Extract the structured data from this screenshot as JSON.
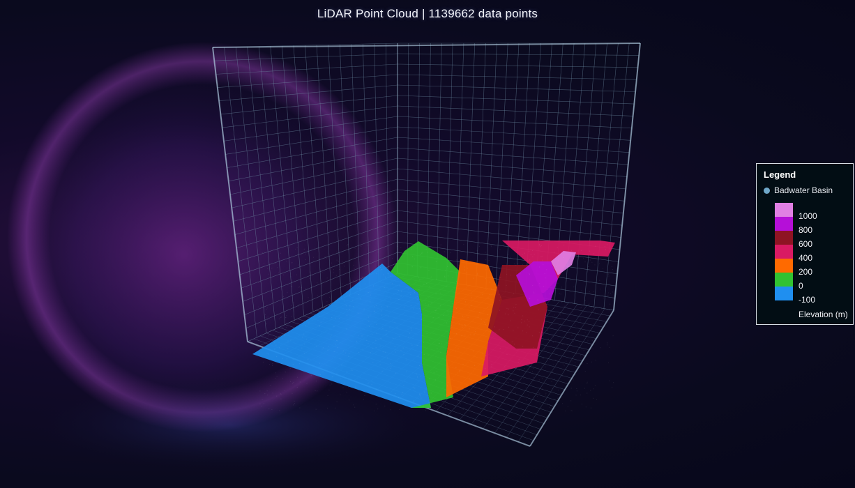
{
  "title": "LiDAR Point Cloud | 1139662 data points",
  "chart_data": {
    "type": "scatter",
    "subtype": "3d-point-cloud",
    "title": "LiDAR Point Cloud | 1139662 data points",
    "point_count": 1139662,
    "series": [
      {
        "name": "Badwater Basin",
        "marker_color": "#6fa7c8"
      }
    ],
    "color_scale": {
      "label": "Elevation (m)",
      "ticks": [
        "1000",
        "800",
        "600",
        "400",
        "200",
        "0",
        "-100"
      ],
      "bands": [
        {
          "max": 1100,
          "color": "#e07fe3"
        },
        {
          "max": 1000,
          "color": "#b50fd8"
        },
        {
          "max": 800,
          "color": "#8e1423"
        },
        {
          "max": 600,
          "color": "#d91a63"
        },
        {
          "max": 400,
          "color": "#ff6a00"
        },
        {
          "max": 200,
          "color": "#31c231"
        },
        {
          "max": 0,
          "color": "#1f8ff0"
        }
      ]
    },
    "grid": true,
    "legend_position": "right"
  },
  "legend": {
    "title": "Legend",
    "series_label": "Badwater Basin",
    "unit_label": "Elevation (m)"
  },
  "colors": {
    "background": "#0a0a1e",
    "grid_line": "#6f8fa6",
    "box_edge": "#b8d4e8"
  }
}
